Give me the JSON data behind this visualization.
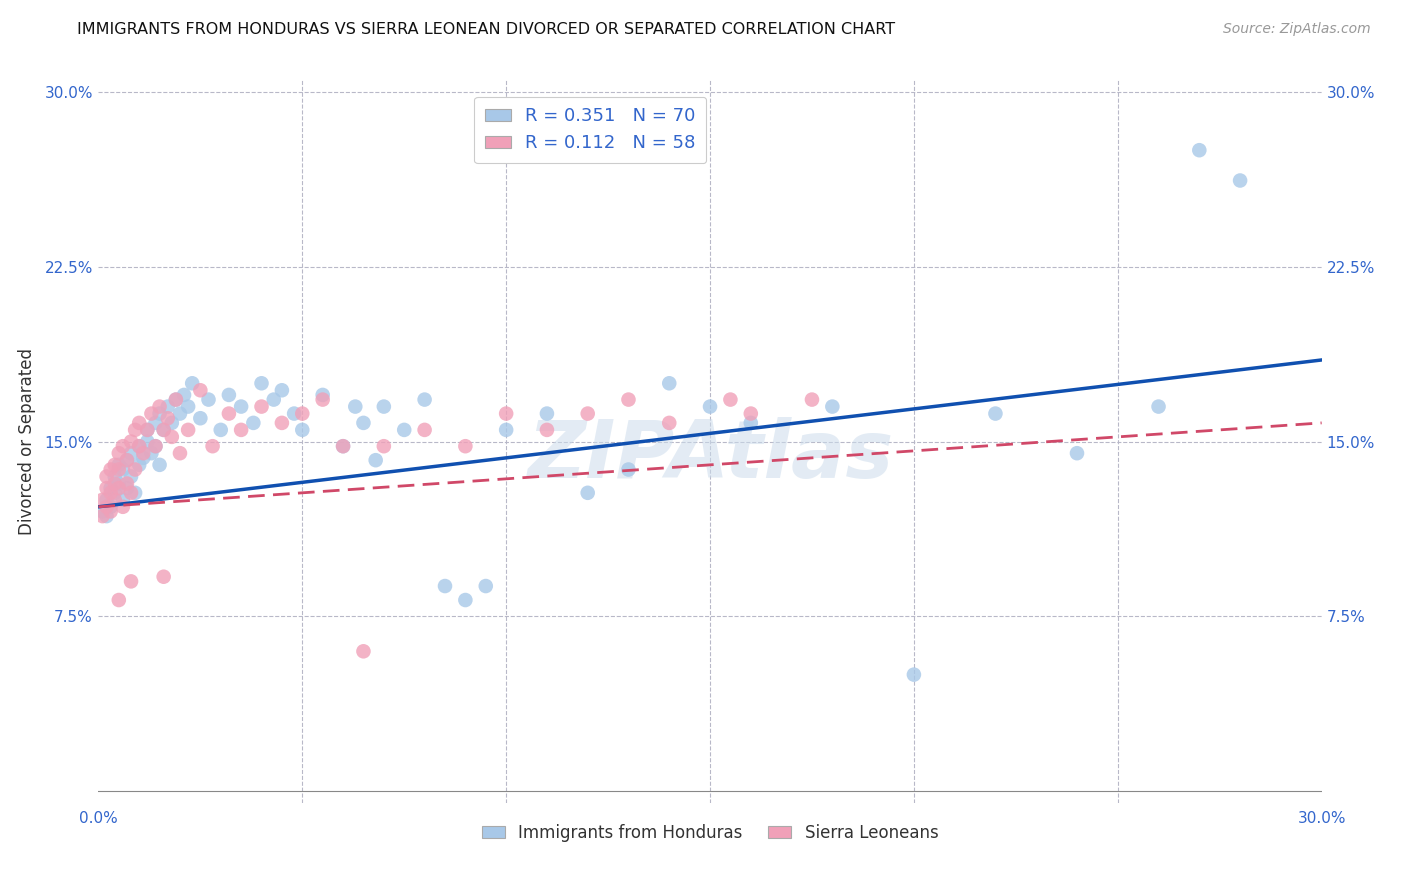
{
  "title": "IMMIGRANTS FROM HONDURAS VS SIERRA LEONEAN DIVORCED OR SEPARATED CORRELATION CHART",
  "source": "Source: ZipAtlas.com",
  "ylabel": "Divorced or Separated",
  "xmin": 0.0,
  "xmax": 0.3,
  "ymin": 0.0,
  "ymax": 0.3,
  "blue_color": "#a8c8e8",
  "pink_color": "#f0a0b8",
  "blue_line_color": "#1050b0",
  "pink_line_color": "#d04868",
  "background_color": "#ffffff",
  "watermark": "ZIPAtlas",
  "blue_line_x0": 0.0,
  "blue_line_y0": 0.122,
  "blue_line_x1": 0.3,
  "blue_line_y1": 0.185,
  "pink_line_x0": 0.0,
  "pink_line_y0": 0.122,
  "pink_line_x1": 0.3,
  "pink_line_y1": 0.158,
  "blue_x": [
    0.001,
    0.002,
    0.002,
    0.003,
    0.003,
    0.004,
    0.004,
    0.005,
    0.005,
    0.006,
    0.006,
    0.007,
    0.007,
    0.008,
    0.008,
    0.009,
    0.01,
    0.01,
    0.011,
    0.012,
    0.012,
    0.013,
    0.014,
    0.014,
    0.015,
    0.015,
    0.016,
    0.017,
    0.018,
    0.019,
    0.02,
    0.021,
    0.022,
    0.023,
    0.025,
    0.027,
    0.03,
    0.032,
    0.035,
    0.038,
    0.04,
    0.043,
    0.045,
    0.048,
    0.05,
    0.055,
    0.06,
    0.063,
    0.065,
    0.068,
    0.07,
    0.075,
    0.08,
    0.085,
    0.09,
    0.095,
    0.1,
    0.11,
    0.12,
    0.13,
    0.14,
    0.15,
    0.16,
    0.18,
    0.2,
    0.22,
    0.24,
    0.26,
    0.27,
    0.28
  ],
  "blue_y": [
    0.12,
    0.125,
    0.118,
    0.13,
    0.122,
    0.128,
    0.135,
    0.132,
    0.14,
    0.125,
    0.138,
    0.142,
    0.13,
    0.135,
    0.145,
    0.128,
    0.14,
    0.148,
    0.143,
    0.15,
    0.155,
    0.145,
    0.158,
    0.148,
    0.162,
    0.14,
    0.155,
    0.165,
    0.158,
    0.168,
    0.162,
    0.17,
    0.165,
    0.175,
    0.16,
    0.168,
    0.155,
    0.17,
    0.165,
    0.158,
    0.175,
    0.168,
    0.172,
    0.162,
    0.155,
    0.17,
    0.148,
    0.165,
    0.158,
    0.142,
    0.165,
    0.155,
    0.168,
    0.088,
    0.082,
    0.088,
    0.155,
    0.162,
    0.128,
    0.138,
    0.175,
    0.165,
    0.158,
    0.165,
    0.05,
    0.162,
    0.145,
    0.165,
    0.275,
    0.262
  ],
  "pink_x": [
    0.001,
    0.001,
    0.002,
    0.002,
    0.002,
    0.003,
    0.003,
    0.003,
    0.004,
    0.004,
    0.004,
    0.005,
    0.005,
    0.005,
    0.006,
    0.006,
    0.007,
    0.007,
    0.008,
    0.008,
    0.009,
    0.009,
    0.01,
    0.01,
    0.011,
    0.012,
    0.013,
    0.014,
    0.015,
    0.016,
    0.017,
    0.018,
    0.019,
    0.02,
    0.022,
    0.025,
    0.028,
    0.032,
    0.035,
    0.04,
    0.045,
    0.05,
    0.055,
    0.06,
    0.065,
    0.07,
    0.08,
    0.09,
    0.1,
    0.11,
    0.12,
    0.13,
    0.14,
    0.155,
    0.16,
    0.175,
    0.005,
    0.008,
    0.016
  ],
  "pink_y": [
    0.125,
    0.118,
    0.13,
    0.122,
    0.135,
    0.128,
    0.138,
    0.12,
    0.132,
    0.14,
    0.125,
    0.145,
    0.13,
    0.138,
    0.148,
    0.122,
    0.142,
    0.132,
    0.15,
    0.128,
    0.155,
    0.138,
    0.148,
    0.158,
    0.145,
    0.155,
    0.162,
    0.148,
    0.165,
    0.155,
    0.16,
    0.152,
    0.168,
    0.145,
    0.155,
    0.172,
    0.148,
    0.162,
    0.155,
    0.165,
    0.158,
    0.162,
    0.168,
    0.148,
    0.06,
    0.148,
    0.155,
    0.148,
    0.162,
    0.155,
    0.162,
    0.168,
    0.158,
    0.168,
    0.162,
    0.168,
    0.082,
    0.09,
    0.092
  ]
}
